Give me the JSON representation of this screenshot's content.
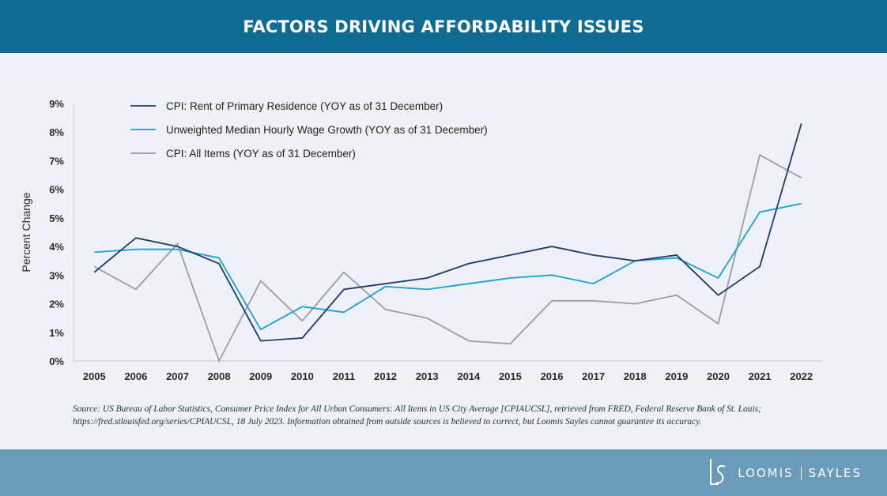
{
  "header": {
    "title": "FACTORS DRIVING AFFORDABILITY ISSUES"
  },
  "chart_data": {
    "type": "line",
    "title": "",
    "xlabel": "",
    "ylabel": "Percent Change",
    "x": [
      "2005",
      "2006",
      "2007",
      "2008",
      "2009",
      "2010",
      "2011",
      "2012",
      "2013",
      "2014",
      "2015",
      "2016",
      "2017",
      "2018",
      "2019",
      "2020",
      "2021",
      "2022"
    ],
    "ylim": [
      0,
      9
    ],
    "yticks": [
      "0%",
      "1%",
      "2%",
      "3%",
      "4%",
      "5%",
      "6%",
      "7%",
      "8%",
      "9%"
    ],
    "grid": false,
    "legend_position": "top-left",
    "series": [
      {
        "name": "CPI: Rent of Primary Residence (YOY as of 31 December)",
        "color": "#1b3a6b",
        "values": [
          3.1,
          4.3,
          4.0,
          3.4,
          0.7,
          0.8,
          2.5,
          2.7,
          2.9,
          3.4,
          3.7,
          4.0,
          3.7,
          3.5,
          3.7,
          2.3,
          3.3,
          8.3
        ]
      },
      {
        "name": "Unweighted Median Hourly Wage Growth (YOY as of 31 December)",
        "color": "#1aa0d8",
        "values": [
          3.8,
          3.9,
          3.9,
          3.6,
          1.1,
          1.9,
          1.7,
          2.6,
          2.5,
          2.7,
          2.9,
          3.0,
          2.7,
          3.5,
          3.6,
          2.9,
          5.2,
          5.5
        ]
      },
      {
        "name": "CPI: All Items (YOY as of 31 December)",
        "color": "#9a9ea3",
        "values": [
          3.3,
          2.5,
          4.1,
          0.0,
          2.8,
          1.4,
          3.1,
          1.8,
          1.5,
          0.7,
          0.6,
          2.1,
          2.1,
          2.0,
          2.3,
          1.3,
          7.2,
          6.4
        ]
      }
    ]
  },
  "source": {
    "text": "Source: US Bureau of Labor Statistics, Consumer Price Index for All Urban Consumers: All Items in US City Average [CPIAUCSL], retrieved from FRED, Federal Reserve Bank of St. Louis; https://fred.stlouisfed.org/series/CPIAUCSL, 18 July 2023. Information obtained from outside sources is believed to correct, but Loomis Sayles cannot guarantee its accuracy."
  },
  "footer": {
    "logo_left": "LOOMIS",
    "logo_right": "SAYLES"
  }
}
